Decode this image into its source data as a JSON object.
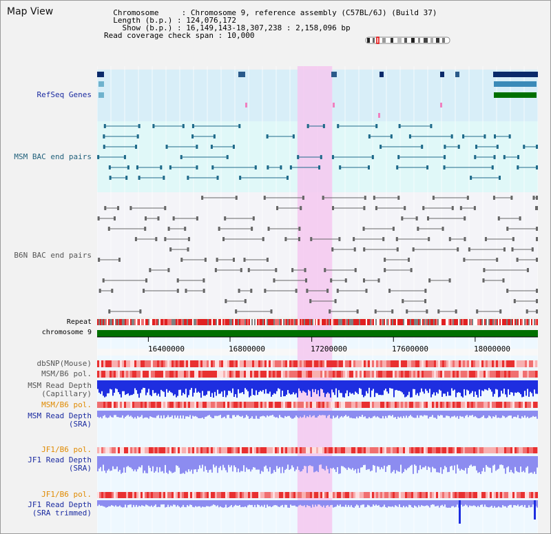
{
  "header": {
    "title": "Map View",
    "info_lines": [
      "  Chromosome     : Chromosome 9, reference assembly (C57BL/6J) (Build 37)",
      "  Length (b.p.) : 124,076,172",
      "    Show (b.p.) : 16,149,143-18,307,238 : 2,158,096 bp",
      "Read coverage check span : 10,000"
    ]
  },
  "tracks": {
    "refseq": "RefSeq Genes",
    "msm_bac": "MSM BAC end pairs",
    "b6n_bac": "B6N BAC end pairs",
    "repeat": "Repeat",
    "chromosome": "chromosome 9",
    "dbsnp": "dbSNP(Mouse)",
    "msm_b6_pol_1": "MSM/B6 pol.",
    "msm_depth_cap_1": "MSM Read Depth",
    "msm_depth_cap_2": "(Capillary)",
    "msm_b6_pol_2": "MSM/B6 pol.",
    "msm_depth_sra_1": "MSM Read Depth",
    "msm_depth_sra_2": "(SRA)",
    "jf1_b6_pol_1": "JF1/B6 pol.",
    "jf1_depth_sra_1": "JF1 Read Depth",
    "jf1_depth_sra_2": "(SRA)",
    "jf1_b6_pol_2": "JF1/B6 pol.",
    "jf1_depth_trim_1": "JF1 Read Depth",
    "jf1_depth_trim_2": "(SRA trimmed)"
  },
  "axis": {
    "ticks": [
      "16400000",
      "16800000",
      "17200000",
      "17600000",
      "18000000"
    ],
    "tick_values": [
      16400000,
      16800000,
      17200000,
      17600000,
      18000000
    ],
    "range": [
      16149143,
      18307238
    ]
  },
  "highlight": {
    "start": 17130000,
    "end": 17300000
  },
  "colors": {
    "refseq_bg": "#d8eef8",
    "msm_bac_bg": "#e0f8f8",
    "b6n_bac_bg": "#f4f4f8",
    "highlight": "#f5c8f0",
    "chromosome": "#007000",
    "depth_blue": "#1e2ee0",
    "depth_light": "#8c8cf0"
  }
}
